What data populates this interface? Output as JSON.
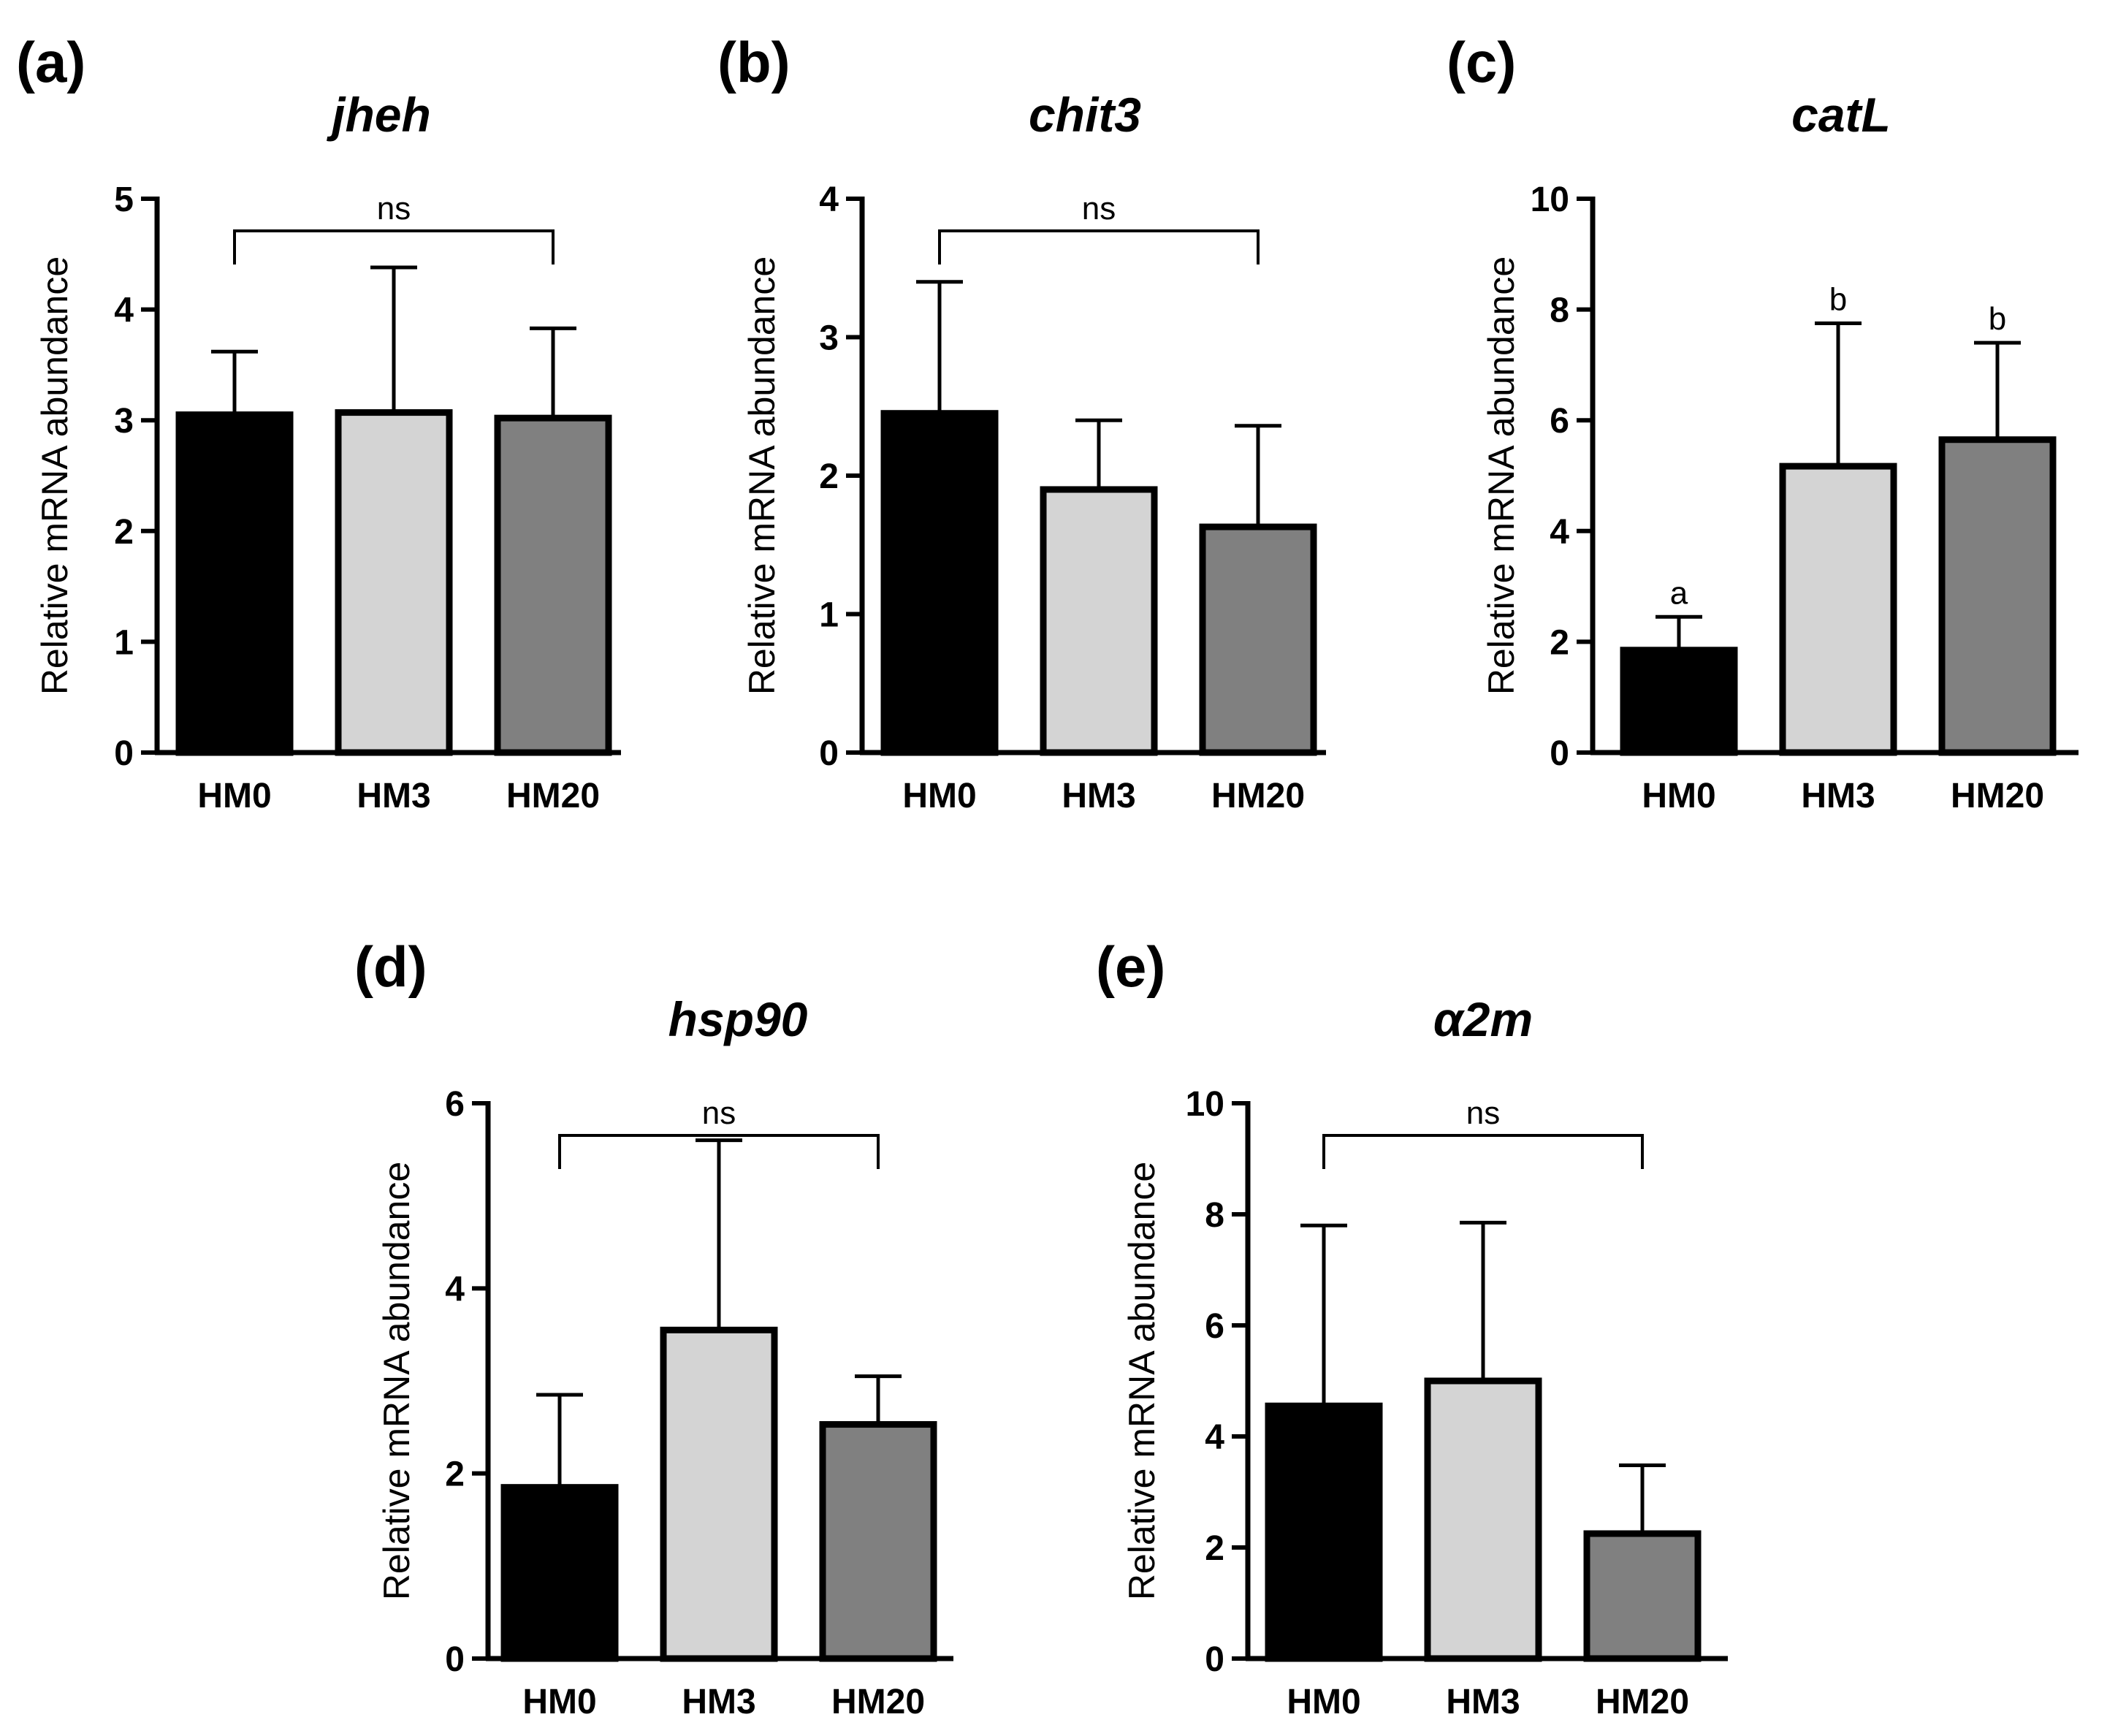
{
  "colors": {
    "HM0": "#000000",
    "HM3": "#d4d4d4",
    "HM20": "#808080"
  },
  "chart_data": [
    {
      "type": "bar",
      "panel_label": "(a)",
      "title": "jheh",
      "ylabel": "Relative mRNA abundance",
      "categories": [
        "HM0",
        "HM3",
        "HM20"
      ],
      "values": [
        3.05,
        3.07,
        3.02
      ],
      "error_upper": [
        3.62,
        4.38,
        3.83
      ],
      "ylim": [
        0,
        5
      ],
      "yticks": [
        0,
        1,
        2,
        3,
        4,
        5
      ],
      "annotation": {
        "type": "bracket",
        "text": "ns"
      }
    },
    {
      "type": "bar",
      "panel_label": "(b)",
      "title": "chit3",
      "ylabel": "Relative mRNA abundance",
      "categories": [
        "HM0",
        "HM3",
        "HM20"
      ],
      "values": [
        2.45,
        1.9,
        1.63
      ],
      "error_upper": [
        3.4,
        2.4,
        2.36
      ],
      "ylim": [
        0,
        4
      ],
      "yticks": [
        0,
        1,
        2,
        3,
        4
      ],
      "annotation": {
        "type": "bracket",
        "text": "ns"
      }
    },
    {
      "type": "bar",
      "panel_label": "(c)",
      "title": "catL",
      "ylabel": "Relative mRNA abundance",
      "categories": [
        "HM0",
        "HM3",
        "HM20"
      ],
      "values": [
        1.85,
        5.17,
        5.65
      ],
      "error_upper": [
        2.45,
        7.75,
        7.4
      ],
      "ylim": [
        0,
        10
      ],
      "yticks": [
        0,
        2,
        4,
        6,
        8,
        10
      ],
      "annotation": {
        "type": "letters",
        "letters": [
          "a",
          "b",
          "b"
        ]
      }
    },
    {
      "type": "bar",
      "panel_label": "(d)",
      "title": "hsp90",
      "ylabel": "Relative mRNA abundance",
      "categories": [
        "HM0",
        "HM3",
        "HM20"
      ],
      "values": [
        1.85,
        3.55,
        2.53
      ],
      "error_upper": [
        2.85,
        5.6,
        3.05
      ],
      "ylim": [
        0,
        6
      ],
      "yticks": [
        0,
        2,
        4,
        6
      ],
      "annotation": {
        "type": "bracket",
        "text": "ns"
      }
    },
    {
      "type": "bar",
      "panel_label": "(e)",
      "title": "α2m",
      "ylabel": "Relative mRNA abundance",
      "categories": [
        "HM0",
        "HM3",
        "HM20"
      ],
      "values": [
        4.55,
        5.0,
        2.25
      ],
      "error_upper": [
        7.8,
        7.85,
        3.48
      ],
      "ylim": [
        0,
        10
      ],
      "yticks": [
        0,
        2,
        4,
        6,
        8,
        10
      ],
      "annotation": {
        "type": "bracket",
        "text": "ns"
      }
    }
  ]
}
